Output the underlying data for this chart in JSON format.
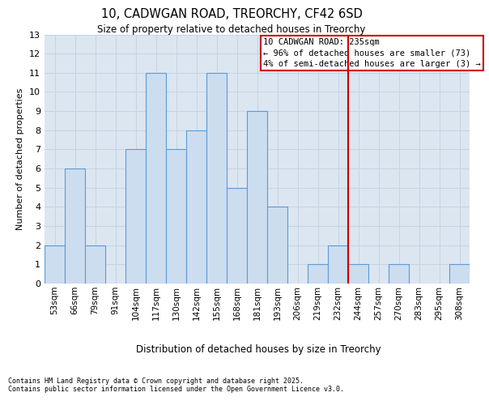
{
  "title1": "10, CADWGAN ROAD, TREORCHY, CF42 6SD",
  "title2": "Size of property relative to detached houses in Treorchy",
  "xlabel": "Distribution of detached houses by size in Treorchy",
  "ylabel": "Number of detached properties",
  "categories": [
    "53sqm",
    "66sqm",
    "79sqm",
    "91sqm",
    "104sqm",
    "117sqm",
    "130sqm",
    "142sqm",
    "155sqm",
    "168sqm",
    "181sqm",
    "193sqm",
    "206sqm",
    "219sqm",
    "232sqm",
    "244sqm",
    "257sqm",
    "270sqm",
    "283sqm",
    "295sqm",
    "308sqm"
  ],
  "values": [
    2,
    6,
    2,
    0,
    7,
    11,
    7,
    8,
    11,
    5,
    9,
    4,
    0,
    1,
    2,
    1,
    0,
    1,
    0,
    0,
    1
  ],
  "bar_color": "#ccddf0",
  "bar_edge_color": "#5b9bd5",
  "grid_color": "#c8d4e3",
  "background_color": "#dce6f1",
  "vline_x_index": 14.5,
  "vline_color": "#cc0000",
  "annotation_text": "10 CADWGAN ROAD: 235sqm\n← 96% of detached houses are smaller (73)\n4% of semi-detached houses are larger (3) →",
  "annotation_box_color": "#cc0000",
  "ylim": [
    0,
    13
  ],
  "yticks": [
    0,
    1,
    2,
    3,
    4,
    5,
    6,
    7,
    8,
    9,
    10,
    11,
    12,
    13
  ],
  "footer1": "Contains HM Land Registry data © Crown copyright and database right 2025.",
  "footer2": "Contains public sector information licensed under the Open Government Licence v3.0."
}
